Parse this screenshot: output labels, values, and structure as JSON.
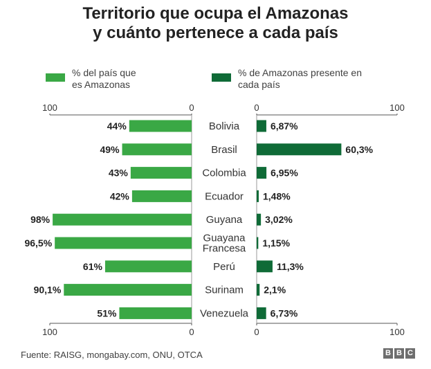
{
  "chart_data": {
    "type": "bar",
    "title": "Territorio que ocupa el Amazonas\ny cuánto pertenece a cada país",
    "categories": [
      "Bolivia",
      "Brasil",
      "Colombia",
      "Ecuador",
      "Guyana",
      "Guayana\nFrancesa",
      "Perú",
      "Surinam",
      "Venezuela"
    ],
    "series": [
      {
        "name": "% del país que es Amazonas",
        "values": [
          44,
          49,
          43,
          42,
          98,
          96.5,
          61,
          90.1,
          51
        ],
        "labels": [
          "44%",
          "49%",
          "43%",
          "42%",
          "98%",
          "96,5%",
          "61%",
          "90,1%",
          "51%"
        ],
        "color": "#3aa845",
        "direction": "left"
      },
      {
        "name": "% de Amazonas presente en cada país",
        "values": [
          6.87,
          60.3,
          6.95,
          1.48,
          3.02,
          1.15,
          11.3,
          2.1,
          6.73
        ],
        "labels": [
          "6,87%",
          "60,3%",
          "6,95%",
          "1,48%",
          "3,02%",
          "1,15%",
          "11,3%",
          "2,1%",
          "6,73%"
        ],
        "color": "#0f6b37",
        "direction": "right"
      }
    ],
    "xlim": [
      0,
      100
    ],
    "tick_labels": [
      "100",
      "0",
      "0",
      "100"
    ],
    "legend": "top",
    "grid": false
  },
  "legend": {
    "left_label": "% del país que\nes Amazonas",
    "right_label": "% de Amazonas presente en\ncada país"
  },
  "footer": {
    "source": "Fuente: RAISG, mongabay.com, ONU, OTCA",
    "logo_letters": [
      "B",
      "B",
      "C"
    ]
  }
}
